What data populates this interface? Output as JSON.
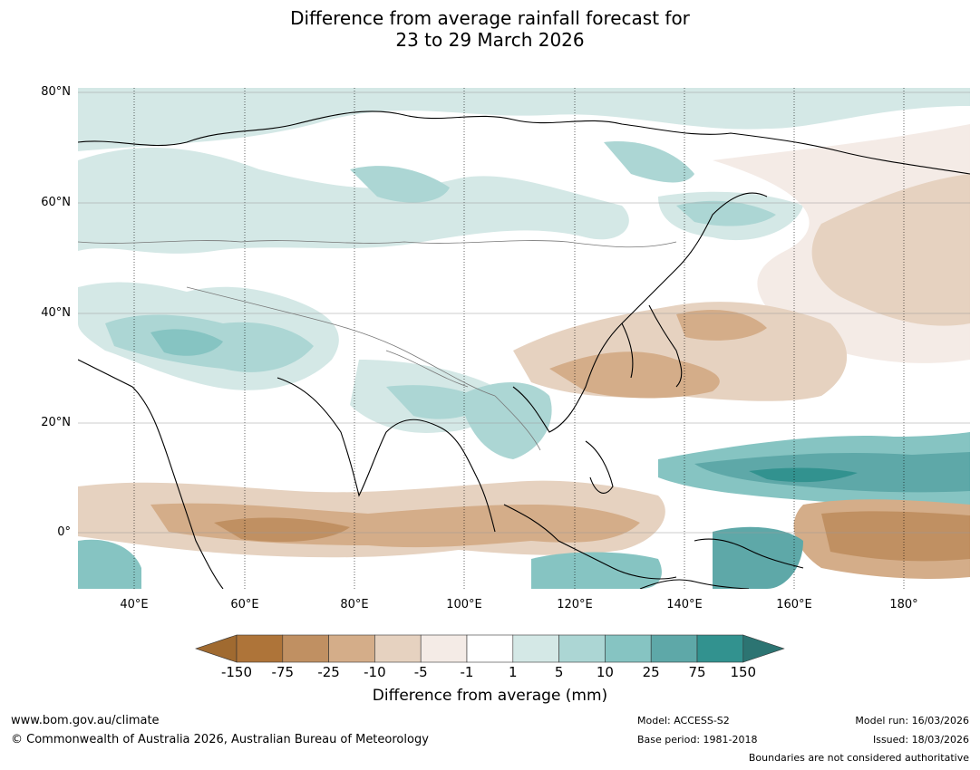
{
  "title": {
    "line1": "Difference from average rainfall forecast for",
    "line2": "23 to 29 March 2026"
  },
  "map": {
    "lat_labels": [
      "80°N",
      "60°N",
      "40°N",
      "20°N",
      "0°"
    ],
    "lon_labels": [
      "40°E",
      "60°E",
      "80°E",
      "100°E",
      "120°E",
      "140°E",
      "160°E",
      "180°"
    ]
  },
  "legend": {
    "title": "Difference from average (mm)",
    "ticks": [
      "-150",
      "-75",
      "-25",
      "-10",
      "-5",
      "-1",
      "1",
      "5",
      "10",
      "25",
      "75",
      "150"
    ],
    "colors": [
      "#a06a30",
      "#ae7439",
      "#c09062",
      "#d4ad89",
      "#e6d2c0",
      "#f4ebe6",
      "#ffffff",
      "#d4e8e6",
      "#acd6d4",
      "#86c4c2",
      "#5ea8a8",
      "#32928f",
      "#2c7472"
    ]
  },
  "footer": {
    "url": "www.bom.gov.au/climate",
    "copyright": "© Commonwealth of Australia 2026, Australian Bureau of Meteorology",
    "model": "Model: ACCESS-S2",
    "base_period": "Base period: 1981-2018",
    "model_run": "Model run: 16/03/2026",
    "issued": "Issued: 18/03/2026",
    "boundaries": "Boundaries are not considered authoritative"
  }
}
